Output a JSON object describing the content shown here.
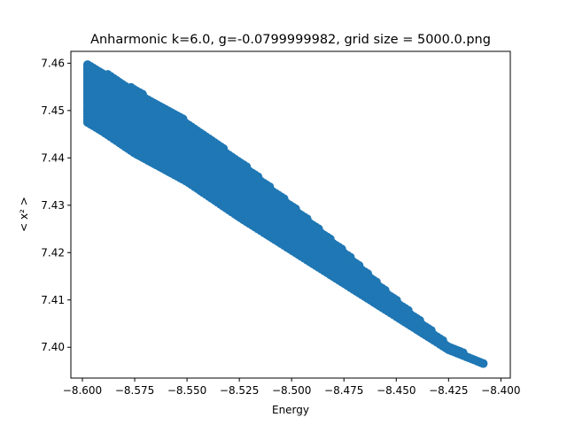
{
  "chart_data": {
    "type": "scatter",
    "title": "Anharmonic  k=6.0, g=-0.0799999982, grid size = 5000.0.png",
    "xlabel": "Energy",
    "ylabel": "< x² >",
    "xlim": [
      -8.6055,
      -8.3955
    ],
    "ylim": [
      7.3935,
      7.4625
    ],
    "x_ticks": [
      -8.6,
      -8.575,
      -8.55,
      -8.525,
      -8.5,
      -8.475,
      -8.45,
      -8.425,
      -8.4
    ],
    "x_tick_labels": [
      "−8.600",
      "−8.575",
      "−8.550",
      "−8.525",
      "−8.500",
      "−8.475",
      "−8.450",
      "−8.425",
      "−8.400"
    ],
    "y_ticks": [
      7.4,
      7.41,
      7.42,
      7.43,
      7.44,
      7.45,
      7.46
    ],
    "y_tick_labels": [
      "7.40",
      "7.41",
      "7.42",
      "7.43",
      "7.44",
      "7.45",
      "7.46"
    ],
    "grid": false,
    "marker_color": "#1f77b4",
    "band": {
      "note_points_upper": [
        [
          -8.5975,
          7.4597
        ],
        [
          -8.59,
          7.4582
        ],
        [
          -8.575,
          7.4545
        ],
        [
          -8.55,
          7.4477
        ],
        [
          -8.525,
          7.4395
        ],
        [
          -8.5,
          7.43
        ],
        [
          -8.475,
          7.4205
        ],
        [
          -8.45,
          7.41
        ],
        [
          -8.425,
          7.4005
        ],
        [
          -8.408,
          7.3965
        ]
      ],
      "note_points_lower": [
        [
          -8.5975,
          7.4475
        ],
        [
          -8.59,
          7.4455
        ],
        [
          -8.575,
          7.441
        ],
        [
          -8.55,
          7.435
        ],
        [
          -8.525,
          7.4275
        ],
        [
          -8.5,
          7.4205
        ],
        [
          -8.475,
          7.4135
        ],
        [
          -8.45,
          7.4065
        ],
        [
          -8.425,
          7.3995
        ],
        [
          -8.408,
          7.3965
        ]
      ]
    }
  }
}
